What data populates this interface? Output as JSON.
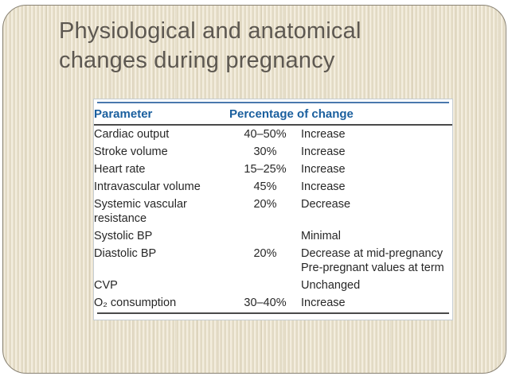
{
  "slide": {
    "title": "Physiological and anatomical\nchanges during pregnancy"
  },
  "table": {
    "columns": {
      "parameter": "Parameter",
      "percentage": "Percentage of change"
    },
    "rows": [
      {
        "parameter": "Cardiac output",
        "percentage": "40–50%",
        "change": "Increase"
      },
      {
        "parameter": "Stroke volume",
        "percentage": "30%",
        "change": "Increase"
      },
      {
        "parameter": "Heart rate",
        "percentage": "15–25%",
        "change": "Increase"
      },
      {
        "parameter": "Intravascular volume",
        "percentage": "45%",
        "change": "Increase"
      },
      {
        "parameter": "Systemic vascular resistance",
        "percentage": "20%",
        "change": "Decrease"
      },
      {
        "parameter": "Systolic BP",
        "percentage": "",
        "change": "Minimal"
      },
      {
        "parameter": "Diastolic BP",
        "percentage": "20%",
        "change": "Decrease at mid-pregnancy\nPre-pregnant values at term"
      },
      {
        "parameter": "CVP",
        "percentage": "",
        "change": "Unchanged"
      },
      {
        "parameter": "O₂ consumption",
        "percentage": "30–40%",
        "change": "Increase"
      }
    ]
  },
  "colors": {
    "slide_background_stripe_light": "#f3edde",
    "slide_background_stripe_dark": "#e2dac4",
    "slide_border": "#8a8374",
    "title_text": "#5d5851",
    "table_header_text": "#1a5f9e",
    "table_top_rule": "#4a78ad",
    "table_dark_rule": "#4a4a4a",
    "table_body_text": "#272727",
    "table_panel_background": "#ffffff"
  }
}
